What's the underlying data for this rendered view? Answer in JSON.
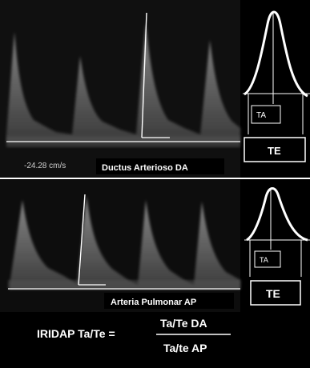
{
  "top_panel": {
    "scale_readout": "-24.28 cm/s",
    "caption": "Ductus Arterioso DA",
    "inset_acceleration_label": "TA",
    "inset_ejection_label": "TE"
  },
  "bottom_panel": {
    "caption": "Arteria Pulmonar AP",
    "inset_acceleration_label": "TA",
    "inset_ejection_label": "TE"
  },
  "formula": {
    "lhs": "IRIDAP Ta/Te =",
    "numerator": "Ta/Te DA",
    "denominator": "Ta/te AP"
  },
  "colors": {
    "background": "#000000",
    "doppler_signal": "#bdbdbd",
    "line": "#ffffff",
    "text": "#ffffff"
  }
}
